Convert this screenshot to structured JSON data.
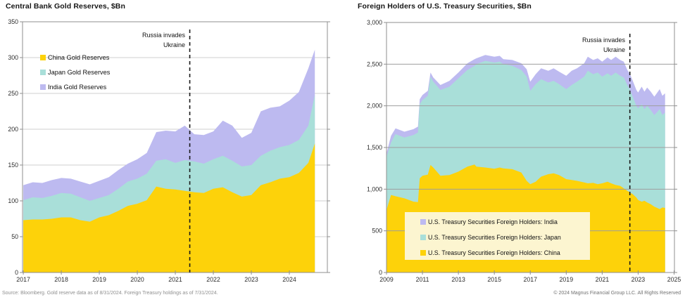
{
  "page": {
    "background": "#ffffff"
  },
  "footer": {
    "source": "Source: Bloomberg. Gold reserve data as of 8/31/2024. Foreign Treasury holdings as of 7/31/2024.",
    "copyright": "© 2024 Magnus Financial Group LLC. All Rights Reserved"
  },
  "colors": {
    "china": "#FDD20A",
    "japan": "#A9DFD9",
    "india": "#BDBAF0",
    "legend_box": "#FCF5D0",
    "grid": "#cfcfcf",
    "grid_over": "#9e9e9e",
    "axis": "#8f8f8f",
    "event_line": "#1a1a1a",
    "tick_text": "#2e2e2e",
    "label_text": "#111111"
  },
  "chart_data": [
    {
      "id": "gold",
      "type": "area",
      "stacked": true,
      "title": "Central Bank Gold Reserves, $Bn",
      "x": [
        2017.0,
        2017.25,
        2017.5,
        2017.75,
        2018.0,
        2018.25,
        2018.5,
        2018.75,
        2019.0,
        2019.25,
        2019.5,
        2019.75,
        2020.0,
        2020.25,
        2020.5,
        2020.75,
        2021.0,
        2021.25,
        2021.5,
        2021.75,
        2022.0,
        2022.25,
        2022.5,
        2022.75,
        2023.0,
        2023.25,
        2023.5,
        2023.75,
        2024.0,
        2024.25,
        2024.5,
        2024.67
      ],
      "series": [
        {
          "name": "China Gold Reserves",
          "color": "#FDD20A",
          "values": [
            73,
            74,
            74,
            75,
            77,
            77,
            73,
            71,
            77,
            80,
            86,
            93,
            96,
            101,
            120,
            117,
            116,
            114,
            112,
            111,
            117,
            119,
            112,
            106,
            108,
            122,
            126,
            131,
            133,
            139,
            153,
            180
          ]
        },
        {
          "name": "Japan Gold Reserves",
          "color": "#A9DFD9",
          "values": [
            28,
            31,
            30,
            32,
            34,
            33,
            32,
            29,
            27,
            28,
            31,
            34,
            35,
            37,
            36,
            41,
            37,
            43,
            43,
            41,
            41,
            44,
            44,
            42,
            42,
            41,
            44,
            44,
            45,
            46,
            52,
            68
          ]
        },
        {
          "name": "India Gold Reserves",
          "color": "#BDBAF0",
          "values": [
            21,
            21,
            21,
            22,
            21,
            21,
            22,
            23,
            24,
            25,
            26,
            25,
            27,
            29,
            40,
            40,
            44,
            48,
            38,
            40,
            39,
            49,
            49,
            40,
            45,
            62,
            60,
            57,
            62,
            67,
            80,
            63
          ]
        }
      ],
      "xlim": [
        2016.98,
        2025.0
      ],
      "ylim": [
        0,
        350
      ],
      "xticks": [
        2017,
        2018,
        2019,
        2020,
        2021,
        2022,
        2023,
        2024
      ],
      "xtick_labels": [
        "2017",
        "2018",
        "2019",
        "2020",
        "2021",
        "2022",
        "2023",
        "2024"
      ],
      "yticks": [
        0,
        50,
        100,
        150,
        200,
        250,
        300,
        350
      ],
      "ytick_labels": [
        "0",
        "50",
        "100",
        "150",
        "200",
        "250",
        "300",
        "350"
      ],
      "legend": {
        "position": "inside-top-left",
        "boxed": false,
        "entries": [
          {
            "label": "China Gold Reserves",
            "color": "#FDD20A"
          },
          {
            "label": "Japan Gold Reserves",
            "color": "#A9DFD9"
          },
          {
            "label": "India Gold Reserves",
            "color": "#BDBAF0"
          }
        ]
      },
      "annotation": {
        "lines": [
          "Russia invades",
          "Ukraine"
        ],
        "x": 2021.38,
        "style": "dashed"
      }
    },
    {
      "id": "treasury",
      "type": "area",
      "stacked": true,
      "title": "Foreign Holders of U.S. Treasury Securities, $Bn",
      "x": [
        2009.0,
        2009.25,
        2009.5,
        2010.0,
        2010.5,
        2010.75,
        2010.85,
        2011.0,
        2011.3,
        2011.45,
        2011.6,
        2012.0,
        2012.5,
        2013.0,
        2013.5,
        2013.9,
        2014.0,
        2014.5,
        2015.0,
        2015.3,
        2015.5,
        2016.0,
        2016.5,
        2016.8,
        2017.0,
        2017.3,
        2017.6,
        2018.0,
        2018.3,
        2018.6,
        2019.0,
        2019.3,
        2019.6,
        2020.0,
        2020.2,
        2020.5,
        2020.75,
        2021.0,
        2021.3,
        2021.5,
        2021.75,
        2022.0,
        2022.2,
        2022.4,
        2022.55,
        2022.7,
        2022.9,
        2023.0,
        2023.2,
        2023.35,
        2023.5,
        2023.7,
        2023.9,
        2024.0,
        2024.2,
        2024.35,
        2024.5
      ],
      "series": [
        {
          "name": "U.S. Treasury Securities Foreign Holders: China",
          "color": "#FDD20A",
          "values": [
            750,
            930,
            915,
            890,
            850,
            845,
            1130,
            1160,
            1175,
            1290,
            1260,
            1160,
            1170,
            1210,
            1270,
            1295,
            1270,
            1260,
            1245,
            1260,
            1250,
            1240,
            1200,
            1100,
            1060,
            1090,
            1150,
            1180,
            1190,
            1170,
            1120,
            1110,
            1100,
            1080,
            1070,
            1075,
            1060,
            1070,
            1090,
            1070,
            1050,
            1040,
            1010,
            980,
            960,
            940,
            900,
            870,
            850,
            860,
            840,
            820,
            790,
            780,
            760,
            780,
            775
          ]
        },
        {
          "name": "U.S. Treasury Securities Foreign Holders: Japan",
          "color": "#A9DFD9",
          "values": [
            640,
            630,
            745,
            730,
            800,
            835,
            890,
            910,
            945,
            1060,
            1030,
            1030,
            1060,
            1120,
            1160,
            1185,
            1230,
            1280,
            1275,
            1270,
            1250,
            1240,
            1230,
            1250,
            1120,
            1170,
            1170,
            1100,
            1110,
            1090,
            1080,
            1140,
            1190,
            1270,
            1350,
            1305,
            1340,
            1280,
            1300,
            1290,
            1350,
            1320,
            1330,
            1270,
            1230,
            1170,
            1100,
            1100,
            1170,
            1100,
            1160,
            1130,
            1100,
            1130,
            1200,
            1110,
            1145
          ]
        },
        {
          "name": "U.S. Treasury Securities Foreign Holders: India",
          "color": "#BDBAF0",
          "values": [
            40,
            80,
            70,
            70,
            70,
            70,
            60,
            60,
            60,
            50,
            50,
            60,
            70,
            70,
            80,
            80,
            70,
            70,
            70,
            70,
            60,
            70,
            80,
            90,
            110,
            120,
            130,
            140,
            150,
            150,
            160,
            170,
            160,
            160,
            170,
            170,
            170,
            180,
            190,
            190,
            190,
            190,
            190,
            180,
            190,
            190,
            190,
            190,
            210,
            210,
            220,
            220,
            220,
            230,
            240,
            230,
            230
          ]
        }
      ],
      "xlim": [
        2009.0,
        2025.02
      ],
      "ylim": [
        0,
        3000
      ],
      "xticks": [
        2009,
        2011,
        2013,
        2015,
        2017,
        2019,
        2021,
        2023,
        2025
      ],
      "xtick_labels": [
        "2009",
        "2011",
        "2013",
        "2015",
        "2017",
        "2019",
        "2021",
        "2023",
        "2025"
      ],
      "yticks": [
        0,
        500,
        1000,
        1500,
        2000,
        2500,
        3000
      ],
      "ytick_labels": [
        "0",
        "500",
        "1,000",
        "1,500",
        "2,000",
        "2,500",
        "3,000"
      ],
      "legend": {
        "position": "inside-bottom-left",
        "boxed": true,
        "entries": [
          {
            "label": "U.S. Treasury Securities Foreign Holders: India",
            "color": "#BDBAF0"
          },
          {
            "label": "U.S. Treasury Securities Foreign Holders: Japan",
            "color": "#A9DFD9"
          },
          {
            "label": "U.S. Treasury Securities Foreign Holders: China",
            "color": "#FDD20A"
          }
        ]
      },
      "annotation": {
        "lines": [
          "Russia invades",
          "Ukraine"
        ],
        "x": 2022.54,
        "style": "dashed"
      }
    }
  ]
}
